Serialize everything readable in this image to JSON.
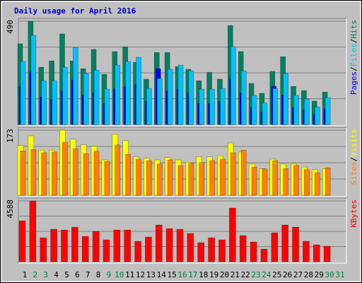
{
  "chart_data": [
    {
      "type": "bar",
      "title": "Daily usage for April 2016",
      "ylim": [
        0,
        490
      ],
      "yticks": [
        490
      ],
      "separator": "/",
      "series": [
        {
          "name": "Pages",
          "color": "#0000ff",
          "values": [
            180,
            250,
            130,
            120,
            160,
            210,
            140,
            150,
            100,
            170,
            180,
            190,
            110,
            265,
            160,
            170,
            150,
            100,
            100,
            110,
            220,
            150,
            80,
            60,
            181,
            140,
            80,
            70,
            50,
            75,
            null
          ]
        },
        {
          "name": "Files",
          "color": "#00c0ff",
          "values": [
            299,
            423,
            208,
            208,
            272,
            366,
            242,
            258,
            168,
            282,
            299,
            319,
            171,
            218,
            262,
            282,
            255,
            168,
            168,
            171,
            369,
            255,
            138,
            101,
            171,
            242,
            138,
            121,
            84,
            128,
            null
          ]
        },
        {
          "name": "Hits",
          "color": "#008060",
          "values": [
            383,
            490,
            272,
            302,
            430,
            302,
            265,
            356,
            238,
            346,
            369,
            295,
            215,
            342,
            342,
            275,
            262,
            208,
            248,
            215,
            470,
            346,
            195,
            148,
            252,
            322,
            181,
            161,
            111,
            154,
            null
          ]
        }
      ]
    },
    {
      "type": "bar",
      "ylim": [
        0,
        173
      ],
      "yticks": [
        173
      ],
      "separator": "/",
      "series": [
        {
          "name": "Sites",
          "color": "#ff8000",
          "values": [
            118,
            122,
            113,
            115,
            141,
            124,
            111,
            117,
            90,
            134,
            109,
            96,
            92,
            83,
            94,
            79,
            85,
            87,
            92,
            96,
            113,
            120,
            75,
            70,
            92,
            71,
            79,
            68,
            60,
            73,
            null
          ]
        },
        {
          "name": "Visits",
          "color": "#ffff00",
          "values": [
            132,
            158,
            120,
            120,
            173,
            149,
            134,
            130,
            94,
            162,
            145,
            102,
            98,
            94,
            100,
            94,
            88,
            103,
            102,
            105,
            139,
            115,
            83,
            71,
            96,
            83,
            83,
            75,
            68,
            71,
            null
          ]
        }
      ]
    },
    {
      "type": "bar",
      "ylim": [
        0,
        4588
      ],
      "yticks": [
        4588
      ],
      "series": [
        {
          "name": "KBytes",
          "color": "#ff0000",
          "values": [
            3094,
            4588,
            1814,
            2454,
            2400,
            2614,
            1920,
            2294,
            1654,
            2400,
            2400,
            1547,
            1867,
            2774,
            2507,
            2454,
            2134,
            1440,
            1814,
            1654,
            4054,
            1974,
            1494,
            960,
            2187,
            2774,
            2614,
            1547,
            1280,
            1174,
            null
          ]
        }
      ],
      "categories": [
        "1",
        "2",
        "3",
        "4",
        "5",
        "6",
        "7",
        "8",
        "9",
        "10",
        "11",
        "12",
        "13",
        "14",
        "15",
        "16",
        "17",
        "18",
        "19",
        "20",
        "21",
        "22",
        "23",
        "24",
        "25",
        "26",
        "27",
        "28",
        "29",
        "30",
        "31"
      ],
      "category_colors": [
        "#000000",
        "#008040",
        "#008040",
        "#000000",
        "#000000",
        "#000000",
        "#000000",
        "#000000",
        "#008040",
        "#008040",
        "#000000",
        "#000000",
        "#000000",
        "#000000",
        "#000000",
        "#008040",
        "#008040",
        "#000000",
        "#000000",
        "#000000",
        "#000000",
        "#000000",
        "#008040",
        "#008040",
        "#000000",
        "#000000",
        "#000000",
        "#000000",
        "#000000",
        "#008040",
        "#008040"
      ]
    }
  ]
}
